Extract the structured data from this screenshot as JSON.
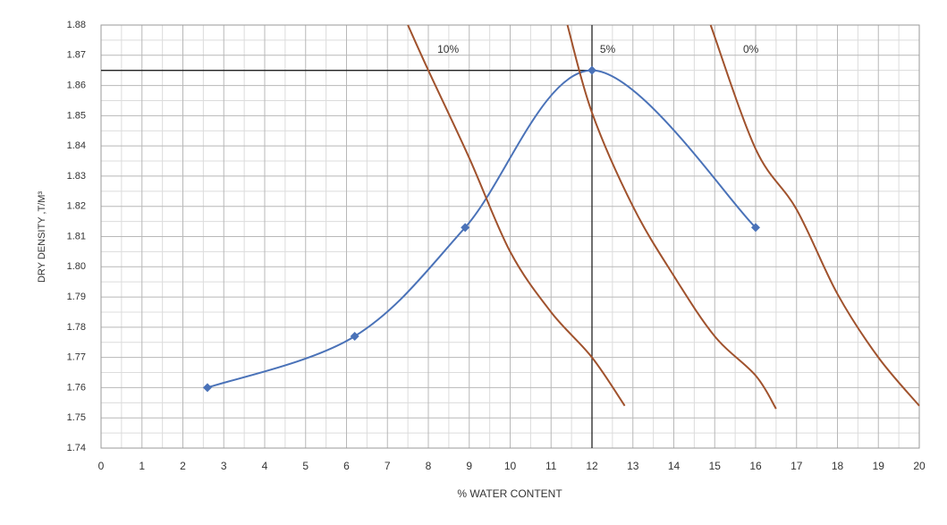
{
  "chart_data": {
    "type": "line",
    "x_label": "% WATER CONTENT",
    "y_label": "DRY DENSITY ,T/M³",
    "xlim": [
      0,
      20
    ],
    "ylim": [
      1.74,
      1.88
    ],
    "xticks": [
      0,
      1,
      2,
      3,
      4,
      5,
      6,
      7,
      8,
      9,
      10,
      11,
      12,
      13,
      14,
      15,
      16,
      17,
      18,
      19,
      20
    ],
    "yticks": [
      1.74,
      1.75,
      1.76,
      1.77,
      1.78,
      1.79,
      {
        "value": 1.8,
        "label": "1.80"
      },
      1.81,
      1.82,
      1.83,
      1.84,
      1.85,
      1.86,
      1.87,
      1.88
    ],
    "grid": true,
    "minor_grid": true,
    "reference_point": {
      "x": 12,
      "y": 1.865,
      "color": "#222222"
    },
    "series": [
      {
        "color": "#4a72b8",
        "smooth": true,
        "markers": true,
        "x": [
          2.6,
          6.2,
          8.9,
          12.0,
          16.0
        ],
        "values": [
          1.76,
          1.777,
          1.813,
          1.865,
          1.813
        ]
      },
      {
        "name": "10%",
        "color": "#a0522d",
        "smooth": true,
        "markers": false,
        "x": [
          7.5,
          8.0,
          9.0,
          10.0,
          11.0,
          12.0,
          12.8
        ],
        "values": [
          1.88,
          1.865,
          1.836,
          1.805,
          1.785,
          1.77,
          1.754
        ]
      },
      {
        "name": "5%",
        "color": "#a0522d",
        "smooth": true,
        "markers": false,
        "x": [
          11.4,
          12.0,
          13.0,
          14.0,
          15.0,
          16.0,
          16.5
        ],
        "values": [
          1.88,
          1.851,
          1.82,
          1.797,
          1.777,
          1.764,
          1.753
        ]
      },
      {
        "name": "0%",
        "color": "#a0522d",
        "smooth": true,
        "markers": false,
        "x": [
          14.9,
          16.0,
          17.0,
          18.0,
          19.0,
          20.0
        ],
        "values": [
          1.88,
          1.839,
          1.819,
          1.791,
          1.77,
          1.754
        ]
      }
    ]
  }
}
